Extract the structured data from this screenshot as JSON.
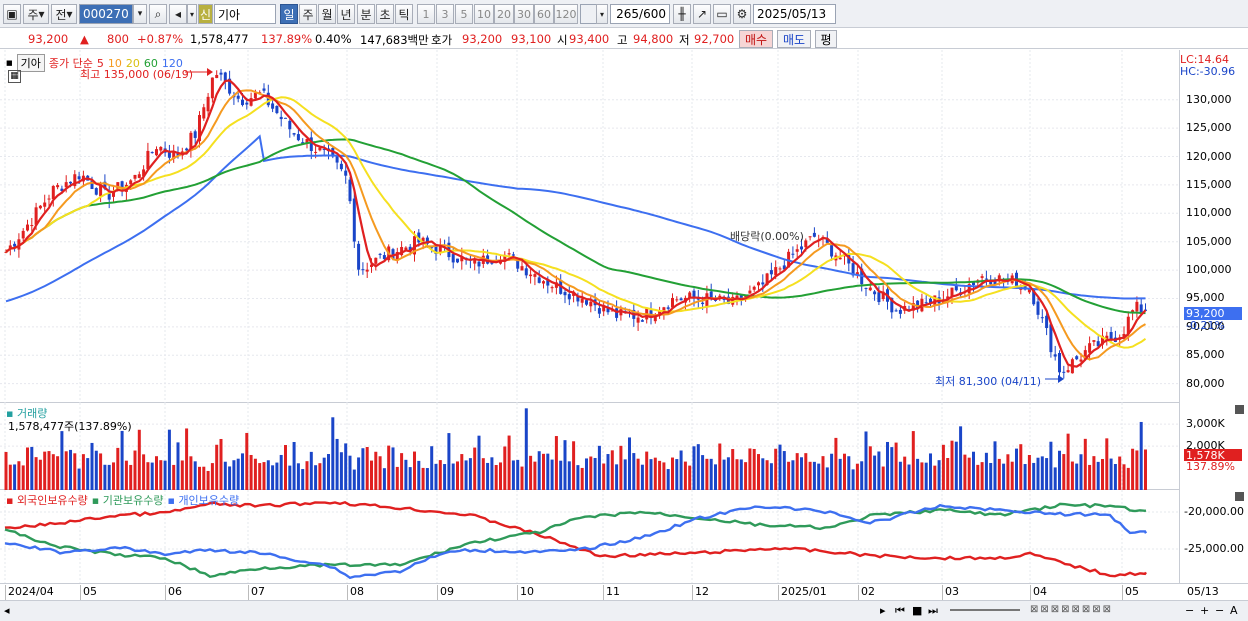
{
  "toolbar": {
    "market": "주",
    "prev": "전",
    "code": "000270",
    "new_badge": "신",
    "stock_name": "기아",
    "periods": [
      "일",
      "주",
      "월",
      "년",
      "분",
      "초",
      "틱"
    ],
    "active_period": "일",
    "minutes": [
      "1",
      "3",
      "5",
      "10",
      "20",
      "30",
      "60",
      "120"
    ],
    "count": "265",
    "count_max": "/600",
    "date": "2025/05/13"
  },
  "quote": {
    "price": "93,200",
    "arrow": "▲",
    "change": "800",
    "change_pct": "+0.87%",
    "volume": "1,578,477",
    "vol_ratio": "137.89%",
    "turnover": "0.40%",
    "amount": "147,683백만",
    "bid_label": "호가",
    "ask": "93,200",
    "bid": "93,100",
    "open_label": "시",
    "open": "93,400",
    "high_label": "고",
    "high": "94,800",
    "low_label": "저",
    "low": "92,700",
    "buy": "매수",
    "sell": "매도",
    "avg": "평"
  },
  "price_panel": {
    "name_tag": "기아",
    "ma_label": "종가 단순",
    "ma_periods": [
      "5",
      "10",
      "20",
      "60",
      "120"
    ],
    "ma_colors": [
      "#e02020",
      "#f59a20",
      "#f5e020",
      "#23a035",
      "#3d6ff0"
    ],
    "high_note": "최고 135,000 (06/19)",
    "low_note": "최저 81,300 (04/11)",
    "dividend_note": "배당락(0.00%)",
    "lc": "LC:14.64",
    "hc": "HC:-30.96",
    "axis_ticks": [
      "130,000",
      "125,000",
      "120,000",
      "115,000",
      "110,000",
      "105,000",
      "100,000",
      "95,000",
      "90,000",
      "85,000",
      "80,000"
    ],
    "current_price": "93,200",
    "current_pct": "-0.21%"
  },
  "volume_panel": {
    "title": "거래량",
    "value": "1,578,477주(137.89%)",
    "axis_ticks": [
      "3,000K",
      "2,000K"
    ],
    "current": "1,578K",
    "current_pct": "137.89%"
  },
  "holding_panel": {
    "series": [
      "외국인보유수량",
      "기관보유수량",
      "개인보유수량"
    ],
    "series_colors": [
      "#e02020",
      "#2f9a5a",
      "#3d6ff0"
    ],
    "axis_ticks": [
      "-20,000.00",
      "-25,000.00"
    ]
  },
  "x_axis": [
    "2024/04",
    "05",
    "06",
    "07",
    "08",
    "09",
    "10",
    "11",
    "12",
    "2025/01",
    "02",
    "03",
    "04",
    "05"
  ],
  "x_end": "05/13",
  "chart_data": {
    "type": "candlestick",
    "title": "기아",
    "ylim": [
      78000,
      137000
    ],
    "y_ticks": [
      80000,
      85000,
      90000,
      95000,
      100000,
      105000,
      110000,
      115000,
      120000,
      125000,
      130000
    ],
    "months": [
      "2024/04",
      "05",
      "06",
      "07",
      "08",
      "09",
      "10",
      "11",
      "12",
      "2025/01",
      "02",
      "03",
      "04",
      "05"
    ],
    "close_path": [
      [
        "2024/04-01",
        103000
      ],
      [
        "2024/04-10",
        108000
      ],
      [
        "2024/04-20",
        114000
      ],
      [
        "2024/05-01",
        117000
      ],
      [
        "2024/05-10",
        113000
      ],
      [
        "2024/05-20",
        116000
      ],
      [
        "2024/05-28",
        122000
      ],
      [
        "2024/06-05",
        120000
      ],
      [
        "2024/06-12",
        124000
      ],
      [
        "2024/06-19",
        135000
      ],
      [
        "2024/06-28",
        130000
      ],
      [
        "2024/07-05",
        131000
      ],
      [
        "2024/07-15",
        124000
      ],
      [
        "2024/07-25",
        120000
      ],
      [
        "2024/08-01",
        116000
      ],
      [
        "2024/08-05",
        100000
      ],
      [
        "2024/08-15",
        103000
      ],
      [
        "2024/08-25",
        105000
      ],
      [
        "2024/09-05",
        103000
      ],
      [
        "2024/09-15",
        101000
      ],
      [
        "2024/09-25",
        103000
      ],
      [
        "2024/10-05",
        100000
      ],
      [
        "2024/10-15",
        97000
      ],
      [
        "2024/10-25",
        95000
      ],
      [
        "2024/11-05",
        92000
      ],
      [
        "2024/11-15",
        92000
      ],
      [
        "2024/11-25",
        95000
      ],
      [
        "2024/12-05",
        95000
      ],
      [
        "2024/12-15",
        94000
      ],
      [
        "2024/12-25",
        97000
      ],
      [
        "2025/01-05",
        102000
      ],
      [
        "2025/01-15",
        106000
      ],
      [
        "2025/01-25",
        102000
      ],
      [
        "2025/02-05",
        97000
      ],
      [
        "2025/02-15",
        93000
      ],
      [
        "2025/02-25",
        94000
      ],
      [
        "2025/03-05",
        96000
      ],
      [
        "2025/03-15",
        99000
      ],
      [
        "2025/03-25",
        98000
      ],
      [
        "2025/04-01",
        97000
      ],
      [
        "2025/04-05",
        91000
      ],
      [
        "2025/04-11",
        82000
      ],
      [
        "2025/04-20",
        86000
      ],
      [
        "2025/05-01",
        89000
      ],
      [
        "2025/05-13",
        93200
      ]
    ],
    "ma_series": [
      {
        "name": "5",
        "color": "#e02020"
      },
      {
        "name": "10",
        "color": "#f59a20"
      },
      {
        "name": "20",
        "color": "#f5e020"
      },
      {
        "name": "60",
        "color": "#23a035"
      },
      {
        "name": "120",
        "color": "#3d6ff0"
      }
    ],
    "volume_k": [
      1600,
      1500,
      1400,
      1700,
      1300,
      1500,
      1800,
      1400,
      1200,
      1600,
      1700,
      1300,
      1500,
      2600,
      1400,
      1600,
      1300,
      1200,
      1500,
      1700,
      2800,
      1600,
      1400,
      1500,
      1300,
      1700,
      1800,
      2200,
      1400,
      1600,
      1500,
      3100,
      1400,
      1200,
      1600,
      1800,
      1300,
      1500,
      2200,
      1400,
      2500,
      1700,
      2300,
      1600,
      1400,
      1500,
      1300,
      1200,
      1700,
      1600,
      2300,
      1400,
      1300,
      1600,
      1500,
      1900,
      2400,
      1500,
      1300,
      1600,
      1400,
      1200,
      1500,
      1700,
      1300,
      1600,
      1400,
      2100,
      1500,
      1300,
      1600,
      2200,
      1400,
      1500,
      1700,
      1300,
      2600,
      1800,
      1500,
      1700,
      1400,
      1300,
      1500,
      1600,
      2400,
      1800,
      1500,
      1400,
      1300,
      1578
    ]
  }
}
